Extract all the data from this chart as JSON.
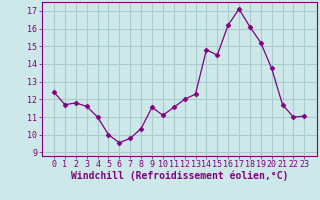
{
  "x": [
    0,
    1,
    2,
    3,
    4,
    5,
    6,
    7,
    8,
    9,
    10,
    11,
    12,
    13,
    14,
    15,
    16,
    17,
    18,
    19,
    20,
    21,
    22,
    23
  ],
  "y": [
    12.4,
    11.7,
    11.8,
    11.6,
    11.0,
    10.0,
    9.55,
    9.8,
    10.35,
    11.55,
    11.1,
    11.55,
    12.0,
    12.3,
    14.8,
    14.5,
    16.2,
    17.1,
    16.1,
    15.2,
    13.75,
    11.7,
    11.0,
    11.05
  ],
  "line_color": "#800080",
  "marker": "D",
  "marker_size": 2.5,
  "bg_color": "#cce8e8",
  "grid_color": "#aacccc",
  "axis_color": "#800080",
  "tick_color": "#800080",
  "xlabel": "Windchill (Refroidissement éolien,°C)",
  "ylim": [
    8.8,
    17.5
  ],
  "yticks": [
    9,
    10,
    11,
    12,
    13,
    14,
    15,
    16,
    17
  ],
  "xticks": [
    0,
    1,
    2,
    3,
    4,
    5,
    6,
    7,
    8,
    9,
    10,
    11,
    12,
    13,
    14,
    15,
    16,
    17,
    18,
    19,
    20,
    21,
    22,
    23
  ],
  "xlabel_fontsize": 7.0,
  "tick_fontsize": 6.0,
  "linewidth": 0.9
}
